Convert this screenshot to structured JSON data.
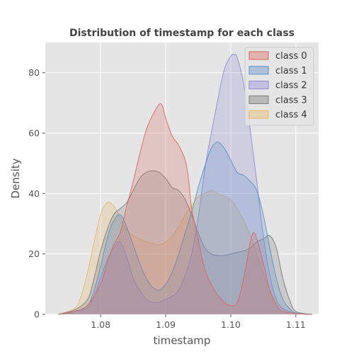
{
  "chart_data": {
    "type": "area",
    "title": "Distribution of timestamp for each class",
    "xlabel": "timestamp",
    "ylabel": "Density",
    "xlim": [
      1.0715,
      1.1135
    ],
    "ylim": [
      0,
      90
    ],
    "xticks": [
      1.08,
      1.09,
      1.1,
      1.11
    ],
    "xtick_labels": [
      "1.08",
      "1.09",
      "1.10",
      "1.11"
    ],
    "yticks": [
      0,
      20,
      40,
      60,
      80
    ],
    "ytick_labels": [
      "0",
      "20",
      "40",
      "60",
      "80"
    ],
    "grid": true,
    "legend_position": "top-right",
    "series": [
      {
        "name": "class 0",
        "color": "#d9685d",
        "x": [
          1.0735,
          1.076,
          1.078,
          1.08,
          1.081,
          1.082,
          1.083,
          1.0838,
          1.085,
          1.086,
          1.087,
          1.088,
          1.089,
          1.0895,
          1.09,
          1.091,
          1.092,
          1.093,
          1.0935,
          1.094,
          1.095,
          1.096,
          1.0975,
          1.099,
          1.1,
          1.101,
          1.102,
          1.103,
          1.1035,
          1.104,
          1.105,
          1.106,
          1.107,
          1.108,
          1.11,
          1.1125
        ],
        "y": [
          0,
          1,
          3,
          10,
          17,
          23,
          27,
          34,
          44,
          53,
          61,
          66,
          69.5,
          69,
          65,
          59,
          56,
          51,
          45,
          35,
          25,
          15,
          8,
          4,
          3,
          4,
          12,
          24,
          27,
          25,
          17,
          8,
          3,
          1,
          0.3,
          0
        ]
      },
      {
        "name": "class 1",
        "color": "#5b8fc7",
        "x": [
          1.0735,
          1.076,
          1.078,
          1.079,
          1.08,
          1.081,
          1.082,
          1.083,
          1.084,
          1.085,
          1.086,
          1.087,
          1.088,
          1.089,
          1.09,
          1.091,
          1.092,
          1.093,
          1.094,
          1.095,
          1.096,
          1.097,
          1.098,
          1.099,
          1.1,
          1.101,
          1.102,
          1.103,
          1.104,
          1.105,
          1.106,
          1.107,
          1.108,
          1.109,
          1.11,
          1.1125
        ],
        "y": [
          0,
          1,
          3,
          8,
          16,
          25,
          31,
          33,
          29,
          23,
          17,
          12,
          9,
          8,
          10,
          14,
          20,
          27,
          34,
          42,
          49,
          55,
          57,
          55,
          51,
          47,
          46,
          44,
          41,
          33,
          22,
          12,
          5,
          2,
          0.5,
          0
        ]
      },
      {
        "name": "class 2",
        "color": "#8f8ad4",
        "x": [
          1.0735,
          1.076,
          1.078,
          1.079,
          1.08,
          1.081,
          1.082,
          1.083,
          1.084,
          1.085,
          1.086,
          1.087,
          1.088,
          1.089,
          1.09,
          1.091,
          1.092,
          1.093,
          1.094,
          1.095,
          1.096,
          1.097,
          1.098,
          1.099,
          1.1,
          1.1005,
          1.101,
          1.102,
          1.103,
          1.104,
          1.105,
          1.106,
          1.107,
          1.108,
          1.11,
          1.1125
        ],
        "y": [
          0,
          1,
          2,
          6,
          12,
          18,
          22,
          24,
          19,
          12,
          8,
          5,
          4,
          4,
          5,
          6,
          8,
          13,
          20,
          32,
          48,
          60,
          71,
          81,
          85.5,
          86,
          85,
          76,
          61,
          44,
          26,
          13,
          5,
          2,
          0.3,
          0
        ]
      },
      {
        "name": "class 3",
        "color": "#7a7a7a",
        "x": [
          1.0735,
          1.076,
          1.078,
          1.079,
          1.08,
          1.081,
          1.082,
          1.083,
          1.084,
          1.085,
          1.086,
          1.087,
          1.088,
          1.089,
          1.09,
          1.091,
          1.092,
          1.093,
          1.094,
          1.095,
          1.096,
          1.097,
          1.098,
          1.099,
          1.1,
          1.101,
          1.102,
          1.103,
          1.104,
          1.105,
          1.106,
          1.107,
          1.108,
          1.109,
          1.11,
          1.1125
        ],
        "y": [
          0,
          1.5,
          5,
          12,
          21,
          28,
          33,
          35,
          37,
          41,
          45,
          47,
          47.5,
          47,
          45,
          42,
          41,
          38,
          33,
          27,
          22,
          20,
          19.5,
          19.5,
          20,
          20.5,
          21,
          22,
          24,
          25,
          26,
          22,
          12,
          5,
          1,
          0
        ]
      },
      {
        "name": "class 4",
        "color": "#e8b868",
        "x": [
          1.0735,
          1.076,
          1.077,
          1.078,
          1.079,
          1.08,
          1.081,
          1.082,
          1.083,
          1.084,
          1.085,
          1.086,
          1.087,
          1.088,
          1.089,
          1.09,
          1.091,
          1.092,
          1.093,
          1.094,
          1.095,
          1.096,
          1.097,
          1.098,
          1.099,
          1.1,
          1.101,
          1.102,
          1.103,
          1.104,
          1.105,
          1.106,
          1.107,
          1.108,
          1.11,
          1.1125
        ],
        "y": [
          0,
          2,
          6,
          14,
          24,
          33,
          37,
          36,
          32,
          28,
          26,
          25,
          24,
          23.5,
          23,
          24,
          26,
          29,
          33,
          36,
          39,
          40,
          41,
          40,
          39,
          38,
          35,
          31,
          26,
          20,
          14,
          8,
          4,
          2,
          0.3,
          0
        ]
      }
    ],
    "draw_order": [
      4,
      3,
      2,
      1,
      0
    ]
  }
}
